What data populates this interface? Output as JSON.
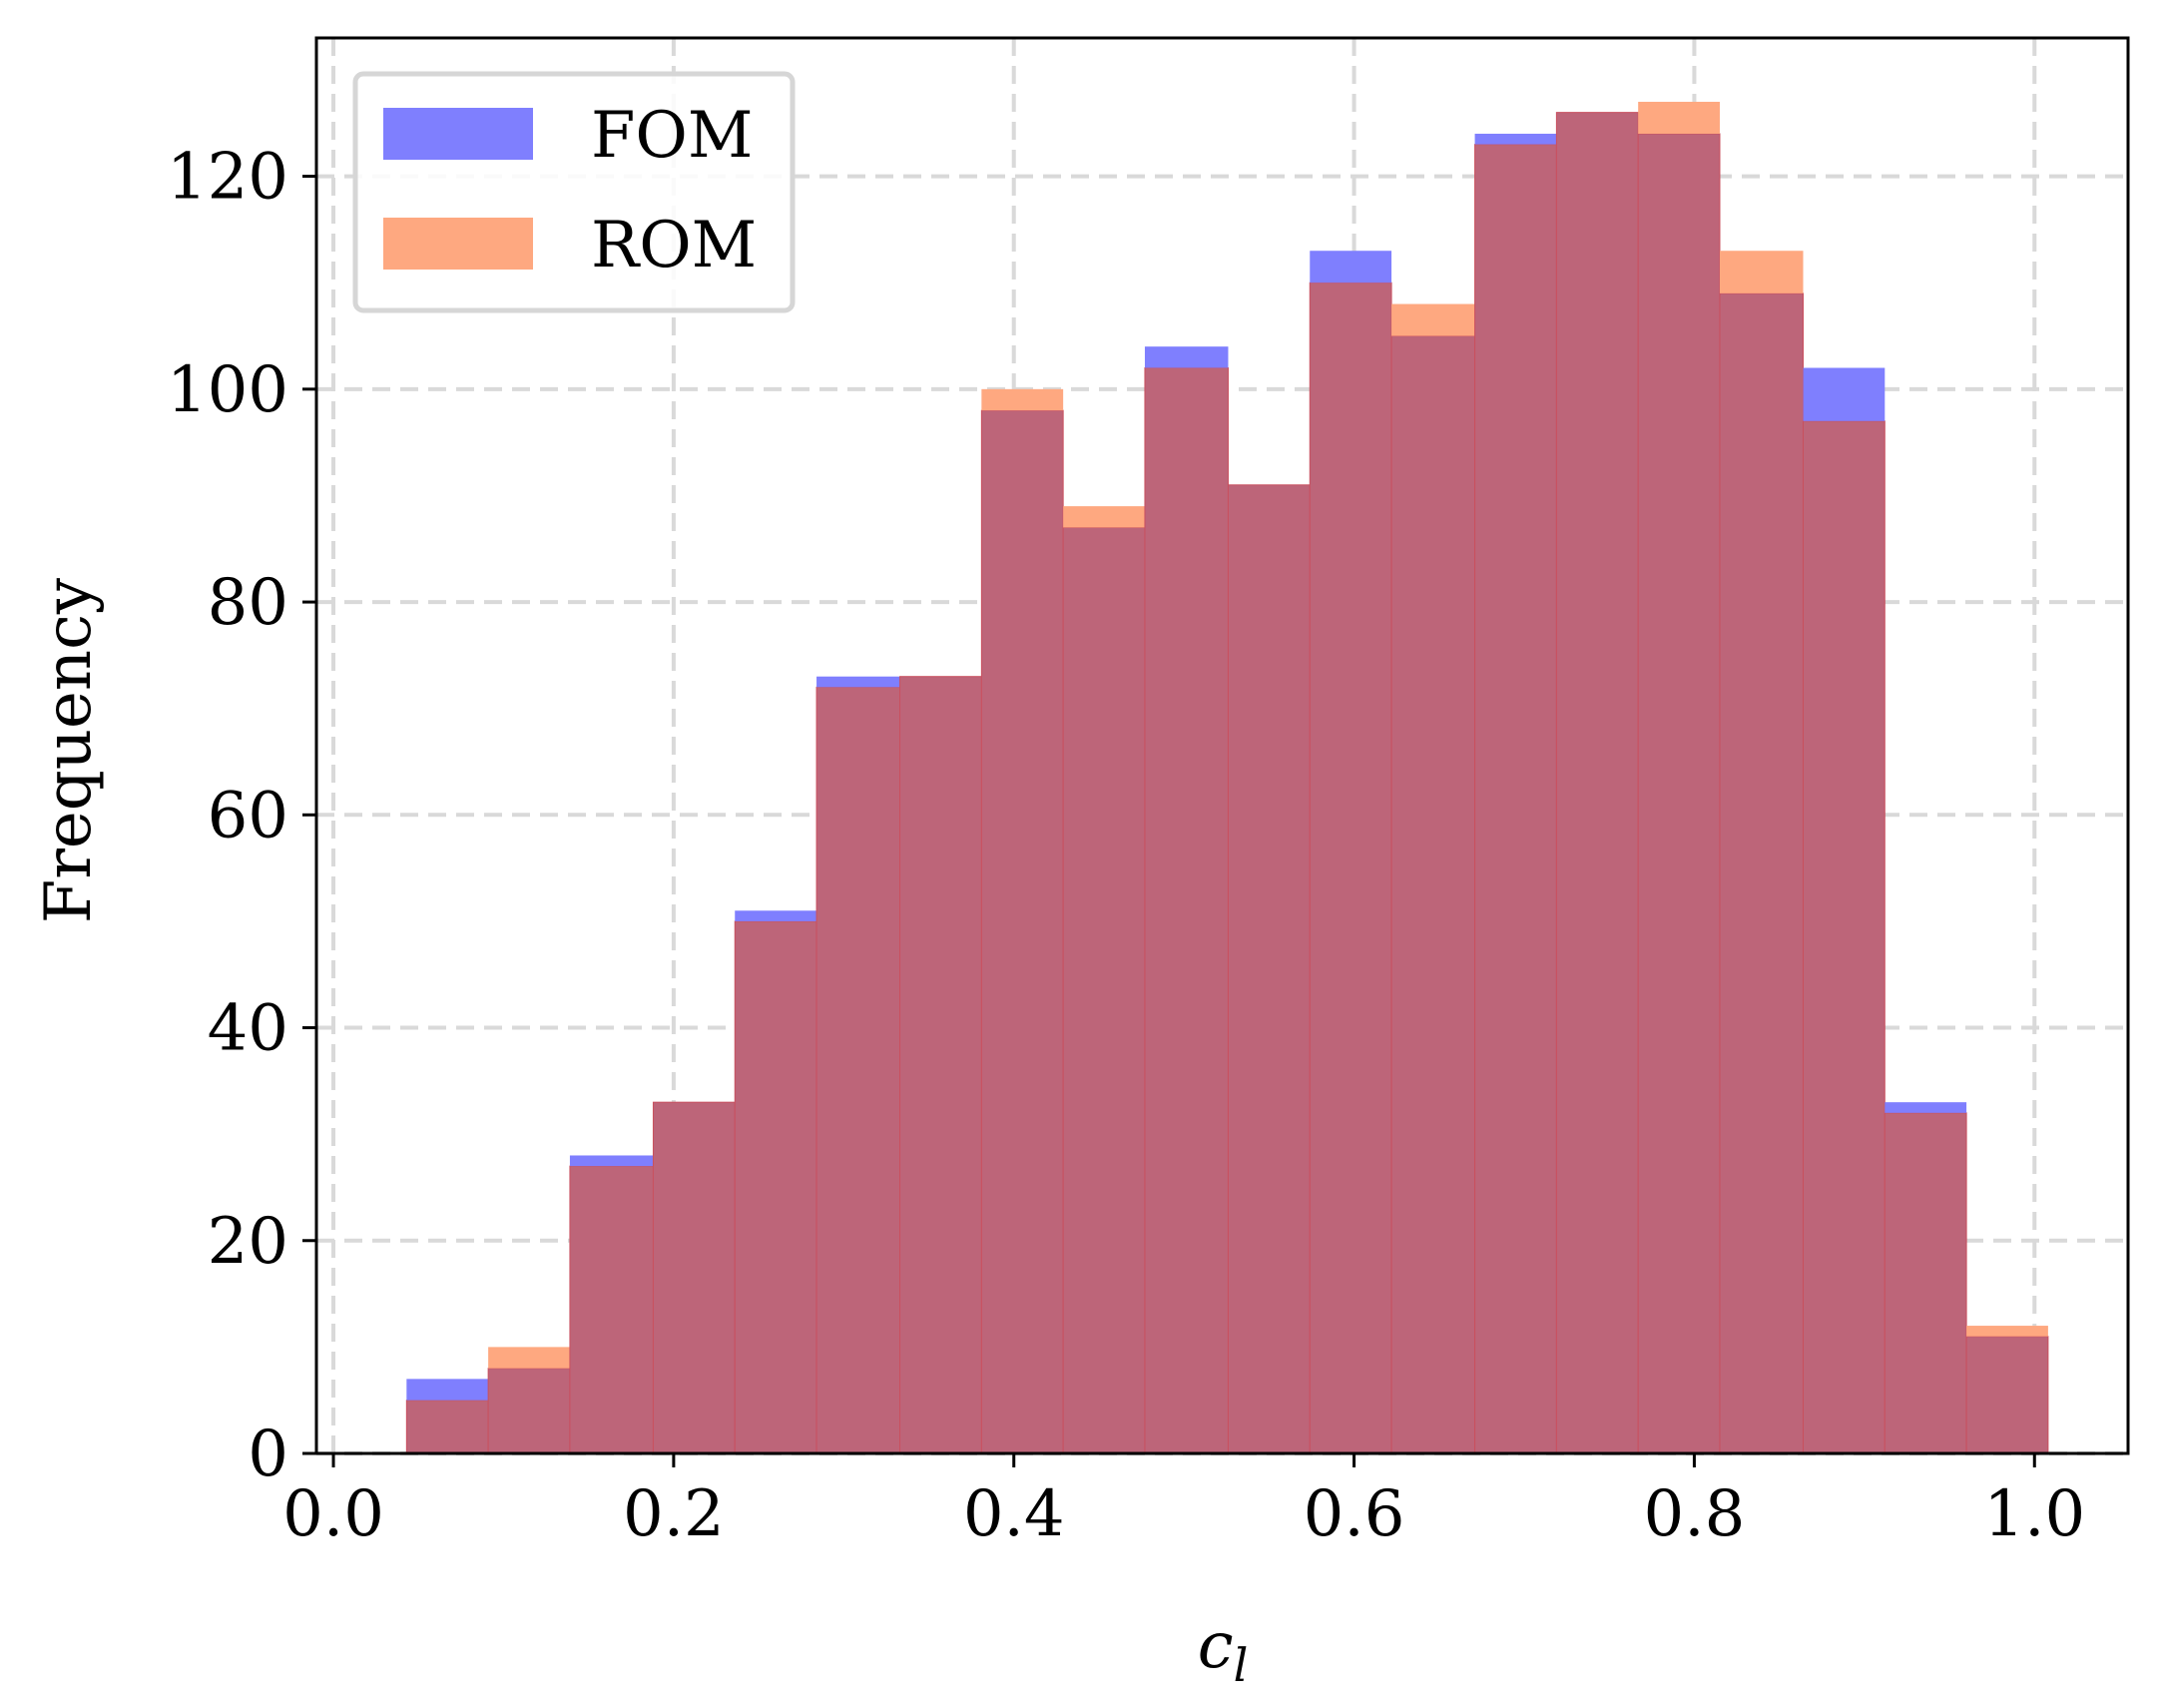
{
  "chart_data": {
    "type": "bar",
    "subtype": "overlapping-histogram",
    "title": "",
    "xlabel": "c",
    "xlabel_subscript": "l",
    "ylabel": "Frequency",
    "xlim": [
      -0.01,
      1.055
    ],
    "ylim": [
      0,
      133
    ],
    "xticks": [
      "0.0",
      "0.2",
      "0.4",
      "0.6",
      "0.8",
      "1.0"
    ],
    "xtick_values": [
      0.0,
      0.2,
      0.4,
      0.6,
      0.8,
      1.0
    ],
    "yticks": [
      "0",
      "20",
      "40",
      "60",
      "80",
      "100",
      "120"
    ],
    "ytick_values": [
      0,
      20,
      40,
      60,
      80,
      100,
      120
    ],
    "grid": true,
    "legend_position": "top-left",
    "bin_edges": [
      0.043,
      0.091,
      0.139,
      0.188,
      0.236,
      0.284,
      0.333,
      0.381,
      0.429,
      0.477,
      0.526,
      0.574,
      0.622,
      0.671,
      0.719,
      0.767,
      0.815,
      0.864,
      0.912,
      0.96,
      1.008
    ],
    "series": [
      {
        "name": "FOM",
        "color": "#7f7ffe",
        "values": [
          7,
          8,
          28,
          33,
          51,
          73,
          73,
          98,
          87,
          104,
          91,
          113,
          105,
          124,
          126,
          124,
          109,
          102,
          33,
          11
        ]
      },
      {
        "name": "ROM",
        "color": "#fea880",
        "values": [
          5,
          10,
          27,
          33,
          50,
          72,
          73,
          100,
          89,
          102,
          91,
          110,
          108,
          123,
          126,
          127,
          113,
          97,
          32,
          12
        ]
      }
    ],
    "overlap_color": "#bd6579"
  }
}
